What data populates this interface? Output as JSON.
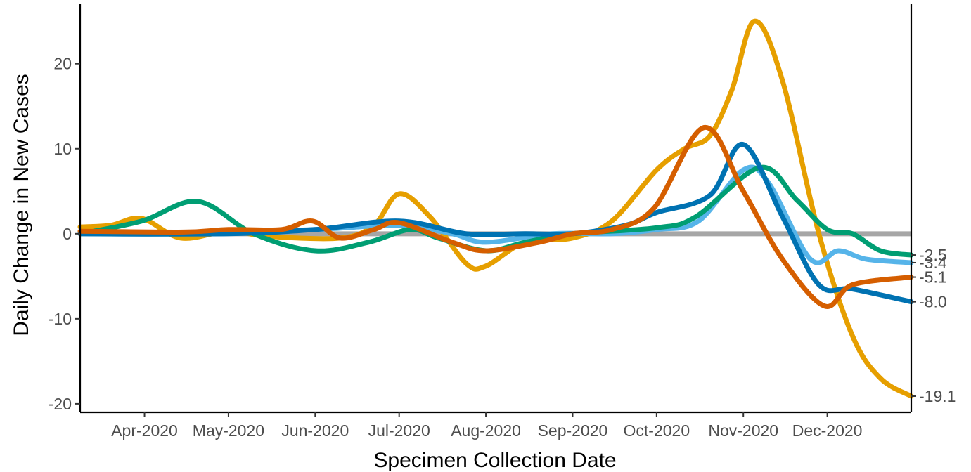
{
  "chart_data": {
    "type": "line",
    "title": "",
    "xlabel": "Specimen Collection Date",
    "ylabel": "Daily Change in New Cases",
    "ylim": [
      -21,
      27
    ],
    "yticks": [
      -20,
      -10,
      0,
      10,
      20
    ],
    "ytick_labels": [
      "-20",
      "-10",
      "0",
      "10",
      "20"
    ],
    "xlim": [
      "2020-03-09",
      "2020-12-31"
    ],
    "xticks": [
      "2020-04-01",
      "2020-05-01",
      "2020-06-01",
      "2020-07-01",
      "2020-08-01",
      "2020-09-01",
      "2020-10-01",
      "2020-11-01",
      "2020-12-01"
    ],
    "xtick_labels": [
      "Apr-2020",
      "May-2020",
      "Jun-2020",
      "Jul-2020",
      "Aug-2020",
      "Sep-2020",
      "Oct-2020",
      "Nov-2020",
      "Dec-2020"
    ],
    "grid": false,
    "legend": "none",
    "reference_line": {
      "y": 0,
      "color": "#a6a6a6"
    },
    "series": [
      {
        "color": "#e69f00",
        "end_label": "-19.1",
        "points": [
          [
            "2020-03-09",
            0.8
          ],
          [
            "2020-03-20",
            1.0
          ],
          [
            "2020-03-31",
            1.8
          ],
          [
            "2020-04-14",
            -0.5
          ],
          [
            "2020-05-01",
            0.3
          ],
          [
            "2020-05-15",
            -0.3
          ],
          [
            "2020-06-10",
            -0.5
          ],
          [
            "2020-06-22",
            1.0
          ],
          [
            "2020-07-01",
            4.7
          ],
          [
            "2020-07-12",
            2.0
          ],
          [
            "2020-07-25",
            -3.5
          ],
          [
            "2020-08-01",
            -3.8
          ],
          [
            "2020-08-15",
            -1.0
          ],
          [
            "2020-09-01",
            -0.5
          ],
          [
            "2020-09-15",
            1.5
          ],
          [
            "2020-10-01",
            7.5
          ],
          [
            "2020-10-11",
            10.0
          ],
          [
            "2020-10-20",
            11.5
          ],
          [
            "2020-10-28",
            17.0
          ],
          [
            "2020-11-05",
            25.0
          ],
          [
            "2020-11-15",
            18.0
          ],
          [
            "2020-11-28",
            0.0
          ],
          [
            "2020-12-10",
            -12.0
          ],
          [
            "2020-12-20",
            -17.0
          ],
          [
            "2020-12-31",
            -19.1
          ]
        ]
      },
      {
        "color": "#56b4e9",
        "end_label": "-3.4",
        "points": [
          [
            "2020-03-09",
            0.0
          ],
          [
            "2020-04-15",
            0.0
          ],
          [
            "2020-06-01",
            0.5
          ],
          [
            "2020-07-01",
            1.0
          ],
          [
            "2020-07-20",
            0.0
          ],
          [
            "2020-08-01",
            -1.0
          ],
          [
            "2020-08-25",
            0.0
          ],
          [
            "2020-09-15",
            0.0
          ],
          [
            "2020-10-01",
            0.5
          ],
          [
            "2020-10-16",
            1.5
          ],
          [
            "2020-11-01",
            7.5
          ],
          [
            "2020-11-10",
            6.0
          ],
          [
            "2020-11-25",
            -3.0
          ],
          [
            "2020-12-05",
            -2.0
          ],
          [
            "2020-12-15",
            -3.0
          ],
          [
            "2020-12-31",
            -3.4
          ]
        ]
      },
      {
        "color": "#009e73",
        "end_label": "-2.5",
        "points": [
          [
            "2020-03-09",
            0.0
          ],
          [
            "2020-03-31",
            1.5
          ],
          [
            "2020-04-20",
            3.8
          ],
          [
            "2020-05-10",
            0.0
          ],
          [
            "2020-06-01",
            -2.0
          ],
          [
            "2020-06-20",
            -1.0
          ],
          [
            "2020-07-05",
            0.5
          ],
          [
            "2020-07-15",
            -0.5
          ],
          [
            "2020-08-01",
            -2.0
          ],
          [
            "2020-08-15",
            -1.0
          ],
          [
            "2020-09-01",
            0.0
          ],
          [
            "2020-10-01",
            0.7
          ],
          [
            "2020-10-15",
            2.0
          ],
          [
            "2020-11-07",
            7.8
          ],
          [
            "2020-11-20",
            4.0
          ],
          [
            "2020-12-01",
            0.5
          ],
          [
            "2020-12-10",
            0.0
          ],
          [
            "2020-12-20",
            -2.0
          ],
          [
            "2020-12-31",
            -2.5
          ]
        ]
      },
      {
        "color": "#0072b2",
        "end_label": "-8.0",
        "points": [
          [
            "2020-03-09",
            0.0
          ],
          [
            "2020-05-01",
            0.0
          ],
          [
            "2020-06-01",
            0.5
          ],
          [
            "2020-07-01",
            1.5
          ],
          [
            "2020-07-25",
            0.0
          ],
          [
            "2020-08-15",
            0.0
          ],
          [
            "2020-09-01",
            0.0
          ],
          [
            "2020-09-20",
            1.0
          ],
          [
            "2020-10-01",
            2.5
          ],
          [
            "2020-10-20",
            4.5
          ],
          [
            "2020-11-01",
            10.5
          ],
          [
            "2020-11-15",
            2.0
          ],
          [
            "2020-11-28",
            -6.0
          ],
          [
            "2020-12-10",
            -6.5
          ],
          [
            "2020-12-31",
            -8.0
          ]
        ]
      },
      {
        "color": "#d55e00",
        "end_label": "-5.1",
        "points": [
          [
            "2020-03-09",
            0.3
          ],
          [
            "2020-04-15",
            0.2
          ],
          [
            "2020-05-01",
            0.5
          ],
          [
            "2020-05-20",
            0.5
          ],
          [
            "2020-05-31",
            1.5
          ],
          [
            "2020-06-10",
            -0.5
          ],
          [
            "2020-06-22",
            0.5
          ],
          [
            "2020-07-01",
            1.3
          ],
          [
            "2020-07-20",
            -1.0
          ],
          [
            "2020-08-01",
            -2.0
          ],
          [
            "2020-08-20",
            -1.0
          ],
          [
            "2020-09-01",
            0.0
          ],
          [
            "2020-09-15",
            0.5
          ],
          [
            "2020-09-30",
            3.0
          ],
          [
            "2020-10-18",
            12.5
          ],
          [
            "2020-11-01",
            5.0
          ],
          [
            "2020-11-15",
            -3.0
          ],
          [
            "2020-11-30",
            -8.5
          ],
          [
            "2020-12-10",
            -6.0
          ],
          [
            "2020-12-31",
            -5.1
          ]
        ]
      }
    ]
  }
}
